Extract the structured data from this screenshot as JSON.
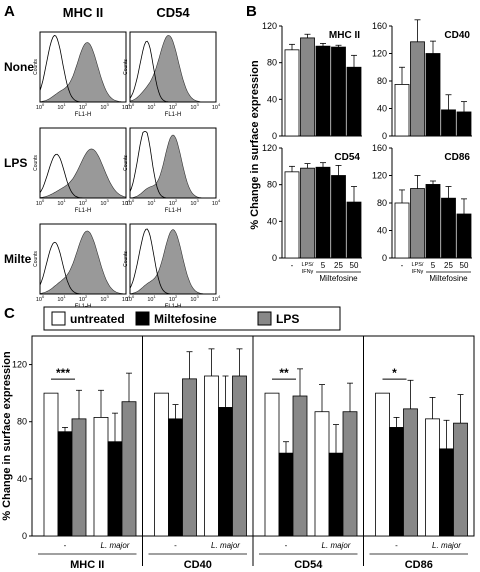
{
  "panel_labels": {
    "a": "A",
    "b": "B",
    "c": "C"
  },
  "colors": {
    "untreated": "#ffffff",
    "miltefosine": "#000000",
    "lps": "#888888",
    "histogram_fill": "#999999"
  },
  "panel_a": {
    "columns": [
      "MHC II",
      "CD54"
    ],
    "rows": [
      "None",
      "LPS",
      "Milte"
    ],
    "x_label": "FL1-H",
    "y_label": "Counts",
    "x_ticks": [
      "10",
      "10",
      "10",
      "10",
      "10"
    ],
    "x_tick_exponents": [
      "0",
      "1",
      "2",
      "3",
      "4"
    ]
  },
  "chart_data": [
    {
      "type": "bar",
      "panel": "B",
      "title": "MHC II",
      "categories": [
        "-",
        "LPS/IFNγ",
        "5",
        "25",
        "50"
      ],
      "values": [
        94,
        107,
        98,
        97,
        75
      ],
      "errors": [
        6,
        4,
        3,
        2,
        13
      ],
      "ylim": [
        0,
        120
      ],
      "yticks": [
        "0",
        "40",
        "80",
        "120"
      ]
    },
    {
      "type": "bar",
      "panel": "B",
      "title": "CD40",
      "categories": [
        "-",
        "LPS/IFNγ",
        "5",
        "25",
        "50"
      ],
      "values": [
        75,
        137,
        120,
        38,
        35
      ],
      "errors": [
        25,
        32,
        18,
        22,
        15
      ],
      "ylim": [
        0,
        160
      ],
      "yticks": [
        "0",
        "40",
        "80",
        "120",
        "160"
      ]
    },
    {
      "type": "bar",
      "panel": "B",
      "title": "CD54",
      "categories": [
        "-",
        "LPS/IFNγ",
        "5",
        "25",
        "50"
      ],
      "values": [
        94,
        98,
        99,
        90,
        61
      ],
      "errors": [
        6,
        5,
        5,
        11,
        17
      ],
      "ylim": [
        0,
        120
      ],
      "yticks": [
        "0",
        "40",
        "80",
        "120"
      ]
    },
    {
      "type": "bar",
      "panel": "B",
      "title": "CD86",
      "categories": [
        "-",
        "LPS/IFNγ",
        "5",
        "25",
        "50"
      ],
      "values": [
        80,
        101,
        107,
        87,
        64
      ],
      "errors": [
        19,
        19,
        5,
        17,
        22
      ],
      "ylim": [
        0,
        160
      ],
      "yticks": [
        "0",
        "40",
        "80",
        "120",
        "160"
      ]
    },
    {
      "type": "bar",
      "panel": "C",
      "legend": [
        "untreated",
        "Miltefosine",
        "LPS"
      ],
      "groups": [
        {
          "name": "MHC II",
          "subgroups": [
            {
              "name": "-",
              "values": [
                100,
                73,
                82
              ],
              "errors": [
                0,
                3,
                20
              ]
            },
            {
              "name": "L. major",
              "values": [
                83,
                66,
                94
              ],
              "errors": [
                19,
                20,
                20
              ]
            }
          ]
        },
        {
          "name": "CD40",
          "subgroups": [
            {
              "name": "-",
              "values": [
                100,
                82,
                110
              ],
              "errors": [
                0,
                10,
                19
              ]
            },
            {
              "name": "L. major",
              "values": [
                112,
                90,
                112
              ],
              "errors": [
                19,
                22,
                19
              ]
            }
          ]
        },
        {
          "name": "CD54",
          "subgroups": [
            {
              "name": "-",
              "values": [
                100,
                58,
                98
              ],
              "errors": [
                0,
                8,
                19
              ]
            },
            {
              "name": "L. major",
              "values": [
                87,
                58,
                87
              ],
              "errors": [
                19,
                20,
                20
              ]
            }
          ]
        },
        {
          "name": "CD86",
          "subgroups": [
            {
              "name": "-",
              "values": [
                100,
                76,
                89
              ],
              "errors": [
                0,
                7,
                20
              ]
            },
            {
              "name": "L. major",
              "values": [
                82,
                61,
                79
              ],
              "errors": [
                15,
                20,
                20
              ]
            }
          ]
        }
      ],
      "ylim": [
        0,
        140
      ],
      "yticks": [
        "0",
        "40",
        "80",
        "120"
      ],
      "significance": [
        {
          "group": "MHC II",
          "label": "***"
        },
        {
          "group": "CD54",
          "label": "**"
        },
        {
          "group": "CD86",
          "label": "*"
        }
      ]
    }
  ],
  "axis_texts": {
    "panel_b_ylabel": "% Change in surface expression",
    "panel_c_ylabel": "% Change in surface expression",
    "dash": "-",
    "lps_line1": "LPS/",
    "lps_line2": "IFNγ",
    "dose_group": "Miltefosine",
    "l_major": "L. major"
  }
}
